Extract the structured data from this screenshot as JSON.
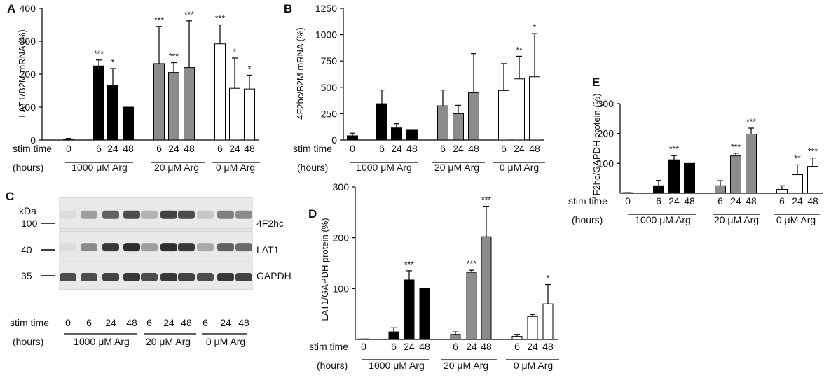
{
  "figure": {
    "common": {
      "stim_label": "stim time",
      "hours_label": "(hours)",
      "colors": {
        "c1000": "#000000",
        "c20": "#8c8c8c",
        "c0": "#ffffff",
        "stroke": "#000000"
      }
    },
    "panel_c": {
      "letter": "C",
      "kda_label": "kDa",
      "markers": [
        "100",
        "40",
        "35"
      ],
      "band_labels": [
        "4F2hc",
        "LAT1",
        "GAPDH"
      ],
      "lanes": [
        "0",
        "6",
        "24",
        "48",
        "6",
        "24",
        "48",
        "6",
        "24",
        "48"
      ],
      "groups": [
        "1000  μM Arg",
        "20 μM  Arg",
        "0 μM  Arg"
      ],
      "intensities": [
        [
          0.05,
          0.35,
          0.65,
          0.75,
          0.25,
          0.8,
          0.75,
          0.15,
          0.5,
          0.45
        ],
        [
          0.05,
          0.45,
          0.85,
          0.9,
          0.35,
          0.9,
          0.85,
          0.3,
          0.65,
          0.6
        ],
        [
          0.75,
          0.75,
          0.8,
          0.85,
          0.75,
          0.85,
          0.8,
          0.75,
          0.85,
          0.8
        ]
      ]
    }
  },
  "chart_data": [
    {
      "panel": "A",
      "type": "bar",
      "title": "",
      "ylabel": "LAT1/B2M  mRNA  (%)",
      "xlabel": "stim time (hours)",
      "ylim": [
        0,
        400
      ],
      "yticks": [
        "0",
        "100",
        "200",
        "300",
        "400"
      ],
      "show_zero_tick": true,
      "categories": [
        "0",
        "6",
        "24",
        "48",
        "6",
        "24",
        "48",
        "6",
        "24",
        "48"
      ],
      "groups": [
        "1000  μM Arg",
        "20 μM  Arg",
        "0 μM  Arg"
      ],
      "values": [
        3,
        225,
        165,
        100,
        232,
        205,
        220,
        292,
        157,
        155
      ],
      "errors": [
        2,
        18,
        52,
        0,
        113,
        30,
        142,
        58,
        92,
        42
      ],
      "significance": [
        "",
        "***",
        "*",
        "",
        "***",
        "***",
        "***",
        "***",
        "*",
        "*"
      ]
    },
    {
      "panel": "B",
      "type": "bar",
      "title": "",
      "ylabel": "4F2hc/B2M  mRNA  (%)",
      "xlabel": "stim time (hours)",
      "ylim": [
        0,
        1250
      ],
      "yticks": [
        "0",
        "250",
        "500",
        "750",
        "1000",
        "1250"
      ],
      "show_zero_tick": true,
      "categories": [
        "0",
        "6",
        "24",
        "48",
        "6",
        "24",
        "48",
        "6",
        "24",
        "48"
      ],
      "groups": [
        "1000  μM Arg",
        "20 μM  Arg",
        "0 μM  Arg"
      ],
      "values": [
        40,
        345,
        115,
        100,
        325,
        250,
        450,
        470,
        580,
        600
      ],
      "errors": [
        25,
        130,
        40,
        0,
        150,
        80,
        370,
        255,
        215,
        410
      ],
      "significance": [
        "",
        "",
        "",
        "",
        "",
        "",
        "",
        "",
        "**",
        "*"
      ]
    },
    {
      "panel": "D",
      "type": "bar",
      "title": "",
      "ylabel": "LAT1/GAPDH  protein  (%)",
      "xlabel": "stim time (hours)",
      "ylim": [
        0,
        300
      ],
      "yticks": [
        "100",
        "200",
        "300"
      ],
      "show_zero_tick": false,
      "categories": [
        "0",
        "6",
        "24",
        "48",
        "6",
        "24",
        "48",
        "6",
        "24",
        "48"
      ],
      "groups": [
        "1000  μM Arg",
        "20 μM  Arg",
        "0 μM  Arg"
      ],
      "values": [
        0,
        15,
        117,
        100,
        10,
        132,
        202,
        6,
        45,
        70
      ],
      "errors": [
        0,
        8,
        18,
        0,
        5,
        4,
        60,
        4,
        4,
        38
      ],
      "significance": [
        "",
        "",
        "***",
        "",
        "",
        "***",
        "***",
        "",
        "",
        "*"
      ]
    },
    {
      "panel": "E",
      "type": "bar",
      "title": "",
      "ylabel": "4F2hc/GAPDH  protein  (%)",
      "xlabel": "stim time (hours)",
      "ylim": [
        0,
        300
      ],
      "yticks": [
        "100",
        "200",
        "300"
      ],
      "show_zero_tick": false,
      "categories": [
        "0",
        "6",
        "24",
        "48",
        "6",
        "24",
        "48",
        "6",
        "24",
        "48"
      ],
      "groups": [
        "1000  μM Arg",
        "20 μM  Arg",
        "0 μM  Arg"
      ],
      "values": [
        1,
        25,
        112,
        100,
        25,
        125,
        198,
        13,
        62,
        90
      ],
      "errors": [
        1,
        18,
        14,
        0,
        17,
        9,
        20,
        12,
        33,
        28
      ],
      "significance": [
        "",
        "",
        "***",
        "",
        "",
        "***",
        "***",
        "",
        "**",
        "***"
      ]
    }
  ]
}
